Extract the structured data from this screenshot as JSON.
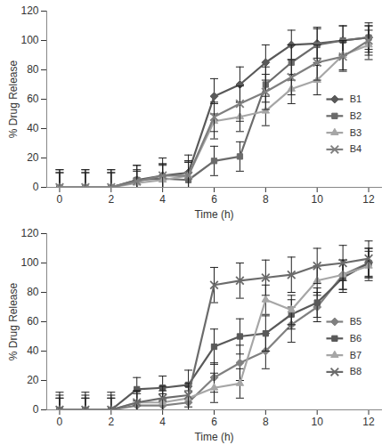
{
  "chart_data": [
    {
      "type": "line",
      "x_label": "Time (h)",
      "y_label": "% Drug Release",
      "x": [
        0,
        1,
        2,
        3,
        4,
        5,
        6,
        7,
        8,
        9,
        10,
        11,
        12
      ],
      "xlim": [
        -0.5,
        12.5
      ],
      "xticks": [
        0,
        2,
        4,
        6,
        8,
        10,
        12
      ],
      "ylim": [
        0,
        120
      ],
      "yticks": [
        0,
        20,
        40,
        60,
        80,
        100,
        120
      ],
      "grid": false,
      "legend": "right",
      "series": [
        {
          "name": "B1",
          "color": "#595959",
          "marker": "diamond",
          "values": [
            0,
            0,
            0,
            5,
            8,
            10,
            62,
            70,
            85,
            97,
            98,
            100,
            102
          ],
          "errors": [
            12,
            12,
            12,
            10,
            12,
            12,
            12,
            12,
            12,
            10,
            10,
            10,
            10
          ]
        },
        {
          "name": "B2",
          "color": "#6b6b6b",
          "marker": "square",
          "values": [
            0,
            0,
            0,
            5,
            6,
            5,
            18,
            21,
            70,
            85,
            97,
            100,
            102
          ],
          "errors": [
            12,
            12,
            12,
            10,
            10,
            12,
            10,
            10,
            12,
            12,
            12,
            10,
            8
          ]
        },
        {
          "name": "B3",
          "color": "#a6a6a6",
          "marker": "triangle",
          "values": [
            0,
            0,
            0,
            3,
            5,
            8,
            45,
            48,
            52,
            67,
            73,
            90,
            97
          ],
          "errors": [
            10,
            10,
            10,
            8,
            10,
            10,
            12,
            10,
            10,
            10,
            10,
            10,
            10
          ]
        },
        {
          "name": "B4",
          "color": "#7f7f7f",
          "marker": "x",
          "values": [
            0,
            0,
            0,
            4,
            8,
            8,
            48,
            57,
            65,
            75,
            85,
            89,
            100
          ],
          "errors": [
            10,
            10,
            10,
            8,
            8,
            10,
            10,
            12,
            12,
            12,
            12,
            10,
            10
          ]
        }
      ]
    },
    {
      "type": "line",
      "x_label": "Time (h)",
      "y_label": "% Drug Release",
      "x": [
        0,
        1,
        2,
        3,
        4,
        5,
        6,
        7,
        8,
        9,
        10,
        11,
        12
      ],
      "xlim": [
        -0.5,
        12.5
      ],
      "xticks": [
        0,
        2,
        4,
        6,
        8,
        10,
        12
      ],
      "ylim": [
        0,
        120
      ],
      "yticks": [
        0,
        20,
        40,
        60,
        80,
        100,
        120
      ],
      "grid": false,
      "legend": "right",
      "series": [
        {
          "name": "B5",
          "color": "#808080",
          "marker": "diamond",
          "values": [
            0,
            0,
            0,
            3,
            3,
            5,
            22,
            32,
            40,
            58,
            70,
            92,
            100
          ],
          "errors": [
            10,
            10,
            10,
            8,
            8,
            8,
            10,
            12,
            12,
            12,
            10,
            10,
            10
          ]
        },
        {
          "name": "B6",
          "color": "#595959",
          "marker": "square",
          "values": [
            0,
            0,
            0,
            14,
            15,
            17,
            43,
            50,
            52,
            65,
            73,
            90,
            100
          ],
          "errors": [
            12,
            12,
            12,
            8,
            8,
            10,
            12,
            12,
            12,
            10,
            10,
            10,
            10
          ]
        },
        {
          "name": "B7",
          "color": "#a6a6a6",
          "marker": "triangle",
          "values": [
            0,
            0,
            0,
            5,
            5,
            8,
            15,
            18,
            75,
            68,
            88,
            92,
            98
          ],
          "errors": [
            8,
            8,
            8,
            8,
            8,
            8,
            10,
            10,
            10,
            10,
            10,
            10,
            10
          ]
        },
        {
          "name": "B8",
          "color": "#6b6b6b",
          "marker": "x",
          "values": [
            0,
            0,
            0,
            5,
            8,
            10,
            85,
            88,
            90,
            92,
            98,
            100,
            103
          ],
          "errors": [
            8,
            8,
            8,
            8,
            8,
            8,
            12,
            12,
            12,
            12,
            12,
            12,
            12
          ]
        }
      ]
    }
  ]
}
